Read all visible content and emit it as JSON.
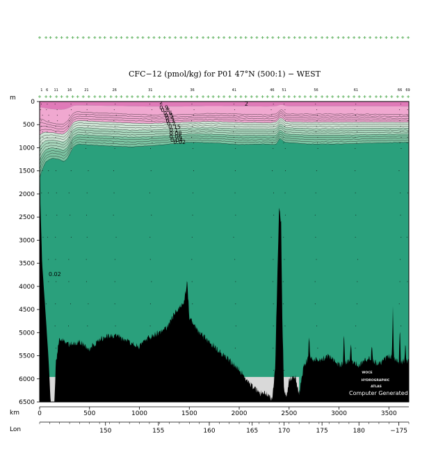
{
  "chart_data": {
    "type": "area",
    "title": "CFC−12 (pmol/kg) for P01 47°N (500:1) − WEST",
    "depth_unit": "m",
    "distance_unit": "km",
    "longitude_label": "Lon",
    "ylim": [
      6500,
      0
    ],
    "xlim": [
      0,
      3700
    ],
    "y_ticks": [
      0,
      500,
      1000,
      1500,
      2000,
      2500,
      3000,
      3500,
      4000,
      4500,
      5000,
      5500,
      6000,
      6500
    ],
    "x_ticks": [
      0,
      500,
      1000,
      1500,
      2000,
      2500,
      3000,
      3500
    ],
    "lon_ticks": [
      {
        "km": 660,
        "label": "150"
      },
      {
        "km": 1190,
        "label": "155"
      },
      {
        "km": 1700,
        "label": "160"
      },
      {
        "km": 2130,
        "label": "165"
      },
      {
        "km": 2450,
        "label": "170"
      },
      {
        "km": 2830,
        "label": "175"
      },
      {
        "km": 3200,
        "label": "180"
      },
      {
        "km": 3600,
        "label": "−175"
      }
    ],
    "station_labels": [
      {
        "km": 20,
        "label": "1"
      },
      {
        "km": 75,
        "label": "6"
      },
      {
        "km": 165,
        "label": "11"
      },
      {
        "km": 300,
        "label": "16"
      },
      {
        "km": 470,
        "label": "21"
      },
      {
        "km": 750,
        "label": "26"
      },
      {
        "km": 1110,
        "label": "31"
      },
      {
        "km": 1530,
        "label": "36"
      },
      {
        "km": 1950,
        "label": "41"
      },
      {
        "km": 2330,
        "label": "46"
      },
      {
        "km": 2450,
        "label": "51"
      },
      {
        "km": 2770,
        "label": "56"
      },
      {
        "km": 3170,
        "label": "61"
      },
      {
        "km": 3610,
        "label": "66"
      },
      {
        "km": 3690,
        "label": "69"
      }
    ],
    "contour_levels": [
      2,
      1,
      0.9,
      0.8,
      0.7,
      0.6,
      0.5,
      0.4,
      0.3,
      0.2,
      0.15,
      0.1,
      0.08,
      0.06,
      0.04,
      0.02
    ],
    "contour_labels": [
      {
        "km": 1200,
        "depth": 60,
        "label": "2"
      },
      {
        "km": 2055,
        "depth": 90,
        "label": "2"
      },
      {
        "km": 1200,
        "depth": 175,
        "label": "0.9"
      },
      {
        "km": 1215,
        "depth": 225,
        "label": "0.8"
      },
      {
        "km": 1240,
        "depth": 290,
        "label": "0.6"
      },
      {
        "km": 1250,
        "depth": 345,
        "label": "0.5"
      },
      {
        "km": 1260,
        "depth": 400,
        "label": "0.4"
      },
      {
        "km": 1265,
        "depth": 460,
        "label": "0.3"
      },
      {
        "km": 1275,
        "depth": 520,
        "label": "0.2"
      },
      {
        "km": 1290,
        "depth": 590,
        "label": "0.15"
      },
      {
        "km": 1300,
        "depth": 660,
        "label": "0.1"
      },
      {
        "km": 1300,
        "depth": 730,
        "label": "0.08"
      },
      {
        "km": 1300,
        "depth": 800,
        "label": "0.06"
      },
      {
        "km": 1310,
        "depth": 870,
        "label": "0.04"
      },
      {
        "km": 1340,
        "depth": 920,
        "label": "0.02"
      },
      {
        "km": 90,
        "depth": 3780,
        "label": "0.02"
      }
    ],
    "bands": [
      {
        "min": 2,
        "color": "#e07ab8"
      },
      {
        "min": 1,
        "color": "#f0a8d0"
      },
      {
        "min": 0.5,
        "color": "#cfe6d6"
      },
      {
        "min": 0.2,
        "color": "#a8d6bc"
      },
      {
        "min": 0.1,
        "color": "#7cc4a2"
      },
      {
        "min": 0.02,
        "color": "#55b48b"
      },
      {
        "min": 0,
        "color": "#2aa07c"
      }
    ],
    "watermark": [
      "WOCE",
      "HYDROGRAPHIC",
      "ATLAS"
    ],
    "credit": "Computer Generated"
  }
}
